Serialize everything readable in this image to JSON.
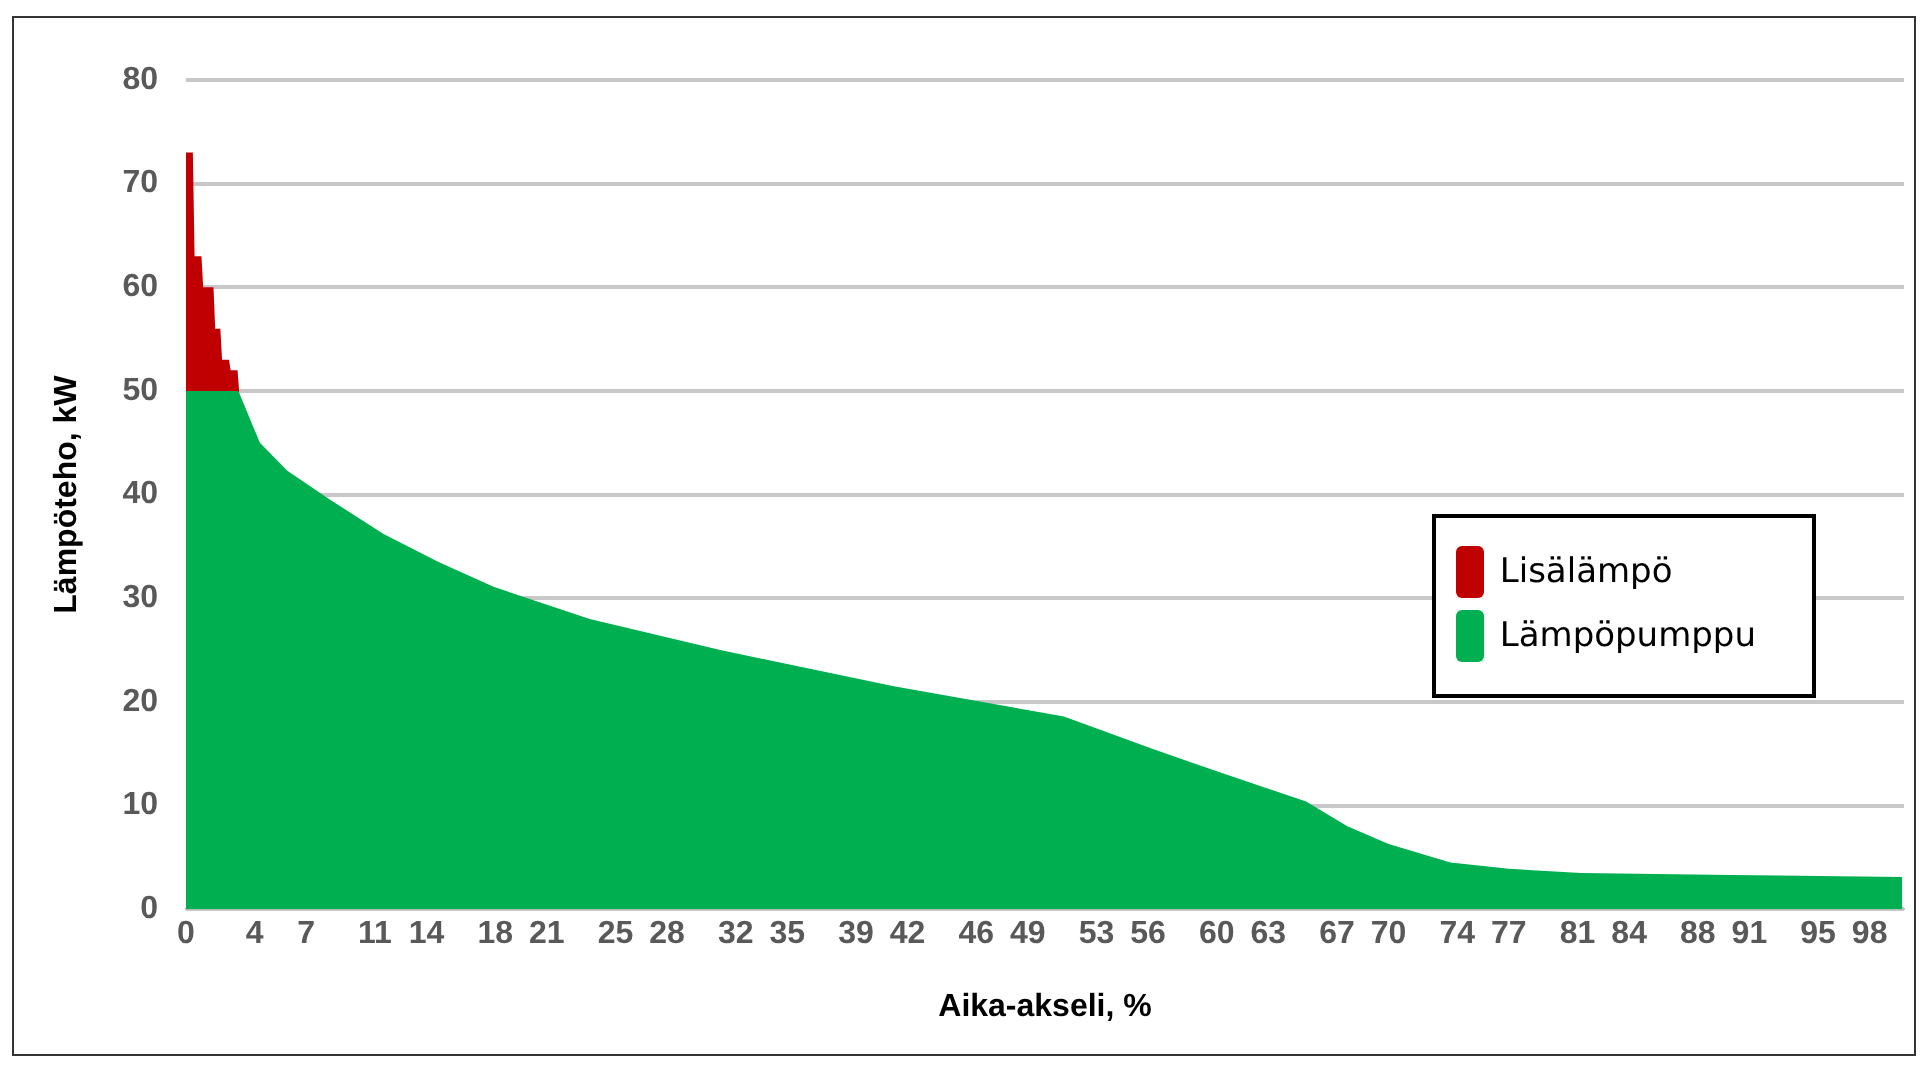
{
  "chart_data": {
    "type": "area",
    "stacked": true,
    "xlabel": "Aika-akseli, %",
    "ylabel": "Lämpöteho, kW",
    "x": [
      0,
      0.4,
      0.5,
      0.9,
      1,
      1.6,
      1.7,
      2,
      2.1,
      2.5,
      2.6,
      3,
      3.1,
      4.3,
      5.9,
      8.3,
      11.5,
      14.7,
      17.9,
      23.5,
      31.1,
      41.2,
      51.1,
      56.2,
      60,
      65.2,
      67.6,
      70,
      73.6,
      77,
      81.2,
      90,
      99.9
    ],
    "series": [
      {
        "name": "Lämpöpumppu",
        "color": "#00b050",
        "values": [
          50,
          50,
          50,
          50,
          50,
          50,
          50,
          50,
          50,
          50,
          50,
          50,
          49.8,
          45,
          42.3,
          39.6,
          36.2,
          33.5,
          31.1,
          28,
          25,
          21.5,
          18.6,
          15.5,
          13.3,
          10.4,
          8,
          6.3,
          4.5,
          3.9,
          3.5,
          3.3,
          3.1
        ]
      },
      {
        "name": "Lisälämpö",
        "color": "#c00000",
        "values": [
          23,
          23,
          13,
          13,
          10,
          10,
          6,
          6,
          3,
          3,
          2,
          2,
          0,
          null,
          null,
          null,
          null,
          null,
          null,
          null,
          null,
          null,
          null,
          null,
          null,
          null,
          null,
          null,
          null,
          null,
          null,
          null,
          null
        ]
      }
    ],
    "xlim": [
      0,
      100
    ],
    "xticks": [
      0,
      4,
      7,
      11,
      14,
      18,
      21,
      25,
      28,
      32,
      35,
      39,
      42,
      46,
      49,
      53,
      56,
      60,
      63,
      67,
      70,
      74,
      77,
      81,
      84,
      88,
      91,
      95,
      98
    ],
    "ylim": [
      0,
      80
    ],
    "yticks": [
      0,
      10,
      20,
      30,
      40,
      50,
      60,
      70,
      80
    ],
    "grid": "y",
    "legend": "right"
  }
}
